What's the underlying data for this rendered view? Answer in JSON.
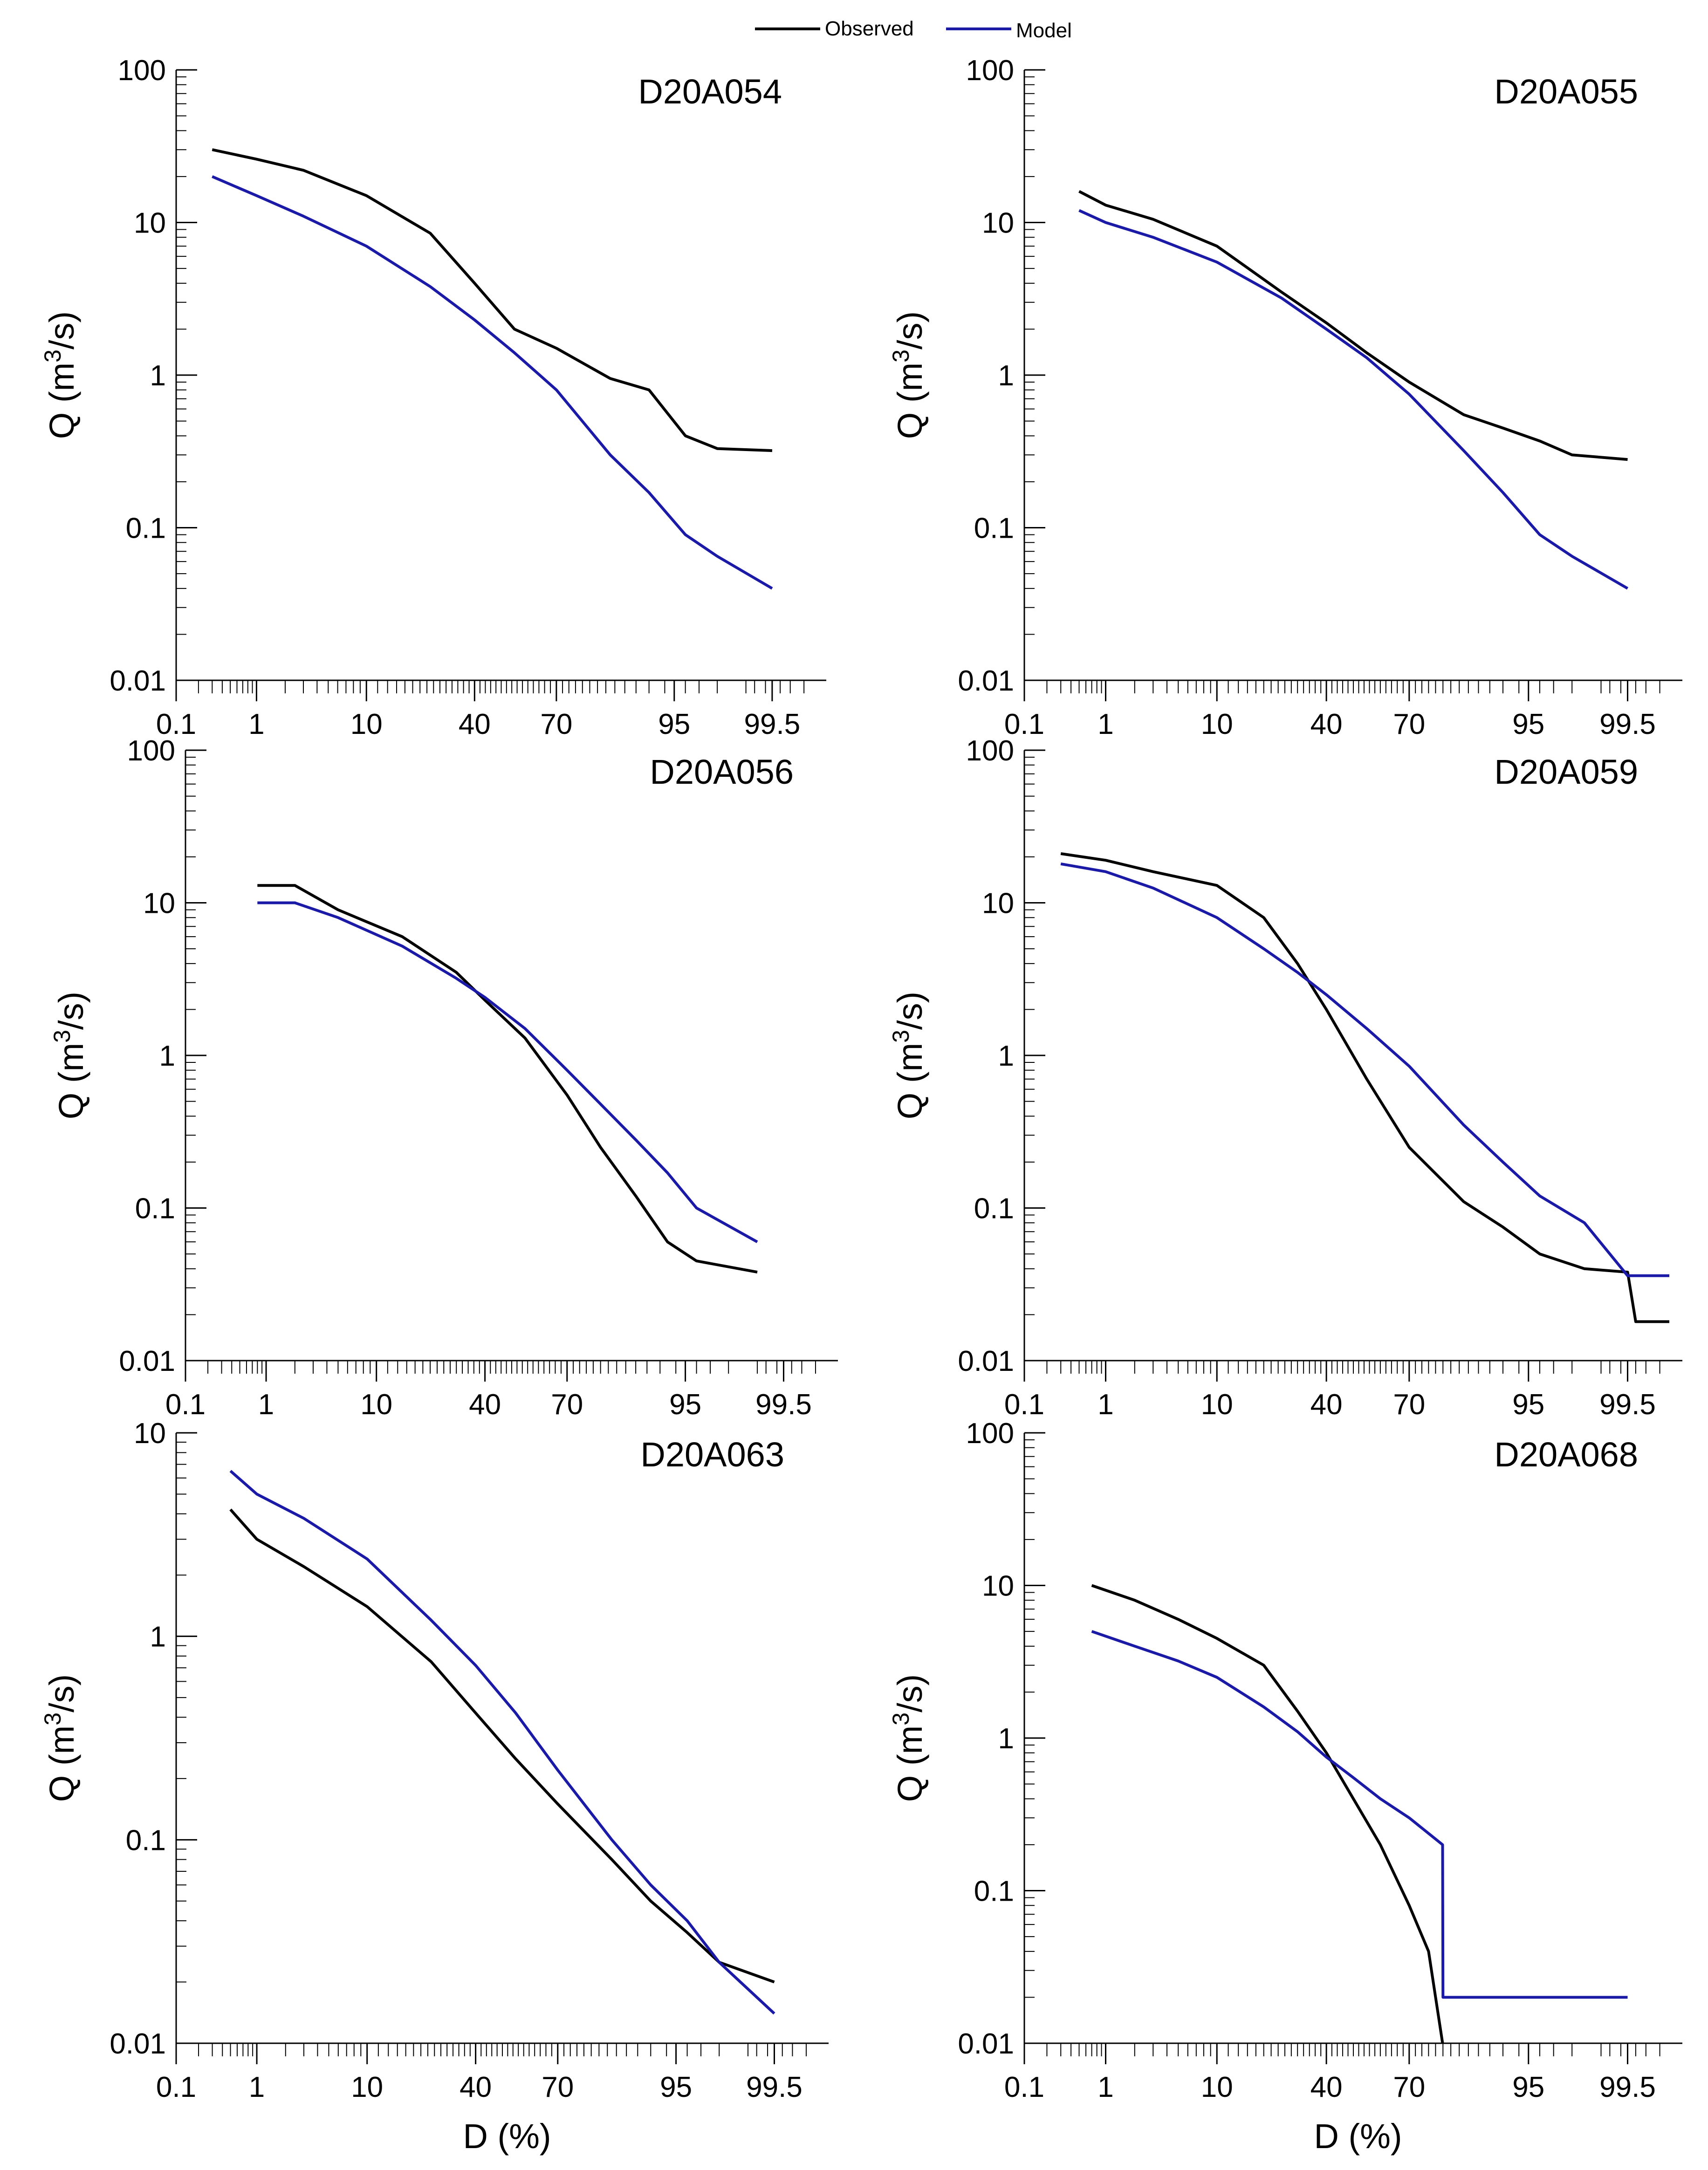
{
  "legend": {
    "items": [
      {
        "label": "Observed",
        "color": "#000000"
      },
      {
        "label": "Model",
        "color": "#1a1aa6"
      }
    ]
  },
  "axis_common": {
    "xlabel": "D (%)",
    "ylabel_prefix": "Q (m",
    "ylabel_sup": "3",
    "ylabel_suffix": "/s)",
    "xticks": [
      {
        "label": "0.1",
        "p": 0.1
      },
      {
        "label": "1",
        "p": 1
      },
      {
        "label": "10",
        "p": 10
      },
      {
        "label": "40",
        "p": 40
      },
      {
        "label": "70",
        "p": 70
      },
      {
        "label": "95",
        "p": 95
      },
      {
        "label": "99.5",
        "p": 99.5
      }
    ]
  },
  "chart_data": [
    {
      "type": "line",
      "title": "D20A054",
      "xlabel": "",
      "ylabel": "Q (m3/s)",
      "xscale": "probability",
      "xlim": [
        0.1,
        99.9
      ],
      "yscale": "log",
      "ylim": [
        0.01,
        100
      ],
      "yticks": [
        "0.01",
        "0.1",
        "1",
        "10",
        "100"
      ],
      "series": [
        {
          "name": "Observed",
          "x": [
            0.3,
            1,
            3,
            10,
            25,
            40,
            55,
            70,
            85,
            92,
            96,
            98,
            99.5
          ],
          "y": [
            30,
            26,
            22,
            15,
            8.5,
            4.0,
            2.0,
            1.5,
            0.95,
            0.8,
            0.4,
            0.33,
            0.32
          ]
        },
        {
          "name": "Model",
          "x": [
            0.3,
            1,
            3,
            10,
            25,
            40,
            55,
            70,
            85,
            92,
            96,
            98,
            99.5
          ],
          "y": [
            20,
            15,
            11,
            7,
            3.8,
            2.3,
            1.4,
            0.8,
            0.3,
            0.17,
            0.09,
            0.065,
            0.04
          ]
        }
      ]
    },
    {
      "type": "line",
      "title": "D20A055",
      "xlabel": "",
      "ylabel": "Q (m3/s)",
      "xscale": "probability",
      "xlim": [
        0.1,
        99.9
      ],
      "yscale": "log",
      "ylim": [
        0.01,
        100
      ],
      "yticks": [
        "0.01",
        "0.1",
        "1",
        "10",
        "100"
      ],
      "series": [
        {
          "name": "Observed",
          "x": [
            0.5,
            1,
            3,
            10,
            25,
            40,
            55,
            70,
            85,
            92,
            96,
            98,
            99.5
          ],
          "y": [
            16,
            13,
            10.5,
            7,
            3.5,
            2.2,
            1.4,
            0.9,
            0.55,
            0.45,
            0.37,
            0.3,
            0.28
          ]
        },
        {
          "name": "Model",
          "x": [
            0.5,
            1,
            3,
            10,
            25,
            40,
            55,
            70,
            85,
            92,
            96,
            98,
            99.5
          ],
          "y": [
            12,
            10,
            8,
            5.5,
            3.2,
            2.0,
            1.3,
            0.75,
            0.32,
            0.17,
            0.09,
            0.065,
            0.04
          ]
        }
      ]
    },
    {
      "type": "line",
      "title": "D20A056",
      "xlabel": "",
      "ylabel": "Q (m3/s)",
      "xscale": "probability",
      "xlim": [
        0.1,
        99.9
      ],
      "yscale": "log",
      "ylim": [
        0.01,
        100
      ],
      "yticks": [
        "0.01",
        "0.1",
        "1",
        "10",
        "100"
      ],
      "series": [
        {
          "name": "Observed",
          "x": [
            0.8,
            2,
            5,
            15,
            30,
            40,
            55,
            70,
            80,
            88,
            93,
            96,
            99
          ],
          "y": [
            13,
            13,
            9,
            6,
            3.5,
            2.3,
            1.3,
            0.55,
            0.25,
            0.12,
            0.06,
            0.045,
            0.038
          ]
        },
        {
          "name": "Model",
          "x": [
            0.8,
            2,
            5,
            15,
            30,
            40,
            55,
            70,
            80,
            88,
            93,
            96,
            99
          ],
          "y": [
            10,
            10,
            8,
            5.2,
            3.2,
            2.4,
            1.5,
            0.8,
            0.48,
            0.28,
            0.17,
            0.1,
            0.06
          ]
        }
      ]
    },
    {
      "type": "line",
      "title": "D20A059",
      "xlabel": "",
      "ylabel": "Q (m3/s)",
      "xscale": "probability",
      "xlim": [
        0.1,
        99.9
      ],
      "yscale": "log",
      "ylim": [
        0.01,
        100
      ],
      "yticks": [
        "0.01",
        "0.1",
        "1",
        "10",
        "100"
      ],
      "series": [
        {
          "name": "Observed",
          "x": [
            0.3,
            1,
            3,
            10,
            20,
            30,
            40,
            55,
            70,
            85,
            92,
            96,
            98.5,
            99.5,
            99.6,
            99.85
          ],
          "y": [
            21,
            19,
            16,
            13,
            8,
            4,
            2.0,
            0.7,
            0.25,
            0.11,
            0.075,
            0.05,
            0.04,
            0.038,
            0.018,
            0.018
          ]
        },
        {
          "name": "Model",
          "x": [
            0.3,
            1,
            3,
            10,
            20,
            30,
            40,
            55,
            70,
            85,
            92,
            96,
            98.5,
            99.5,
            99.85
          ],
          "y": [
            18,
            16,
            12.5,
            8,
            5,
            3.5,
            2.5,
            1.5,
            0.85,
            0.35,
            0.2,
            0.12,
            0.08,
            0.036,
            0.036
          ]
        }
      ]
    },
    {
      "type": "line",
      "title": "D20A063",
      "xlabel": "D (%)",
      "ylabel": "Q (m3/s)",
      "xscale": "probability",
      "xlim": [
        0.1,
        99.9
      ],
      "yscale": "log",
      "ylim": [
        0.01,
        10
      ],
      "yticks": [
        "0.01",
        "0.1",
        "1",
        "10"
      ],
      "series": [
        {
          "name": "Observed",
          "x": [
            0.5,
            1,
            3,
            10,
            25,
            40,
            55,
            70,
            85,
            92,
            96,
            98,
            99.5
          ],
          "y": [
            4.2,
            3.0,
            2.2,
            1.4,
            0.75,
            0.42,
            0.25,
            0.15,
            0.08,
            0.05,
            0.035,
            0.025,
            0.02
          ]
        },
        {
          "name": "Model",
          "x": [
            0.5,
            1,
            3,
            10,
            25,
            40,
            55,
            70,
            85,
            92,
            96,
            98,
            99.5
          ],
          "y": [
            6.5,
            5.0,
            3.8,
            2.4,
            1.2,
            0.72,
            0.42,
            0.22,
            0.1,
            0.06,
            0.04,
            0.025,
            0.014
          ]
        }
      ]
    },
    {
      "type": "line",
      "title": "D20A068",
      "xlabel": "D (%)",
      "ylabel": "Q (m3/s)",
      "xscale": "probability",
      "xlim": [
        0.1,
        99.9
      ],
      "yscale": "log",
      "ylim": [
        0.01,
        100
      ],
      "yticks": [
        "0.01",
        "0.1",
        "1",
        "10",
        "100"
      ],
      "series": [
        {
          "name": "Observed",
          "x": [
            0.7,
            2,
            5,
            10,
            20,
            30,
            40,
            50,
            60,
            70,
            76,
            79.9
          ],
          "y": [
            10,
            8,
            6,
            4.5,
            3,
            1.5,
            0.8,
            0.4,
            0.2,
            0.08,
            0.04,
            0.01
          ]
        },
        {
          "name": "Model",
          "x": [
            0.7,
            2,
            5,
            10,
            20,
            30,
            40,
            50,
            60,
            70,
            79.9,
            80,
            99.5
          ],
          "y": [
            5,
            4,
            3.2,
            2.5,
            1.6,
            1.1,
            0.75,
            0.55,
            0.4,
            0.3,
            0.2,
            0.02,
            0.02
          ]
        }
      ]
    }
  ]
}
